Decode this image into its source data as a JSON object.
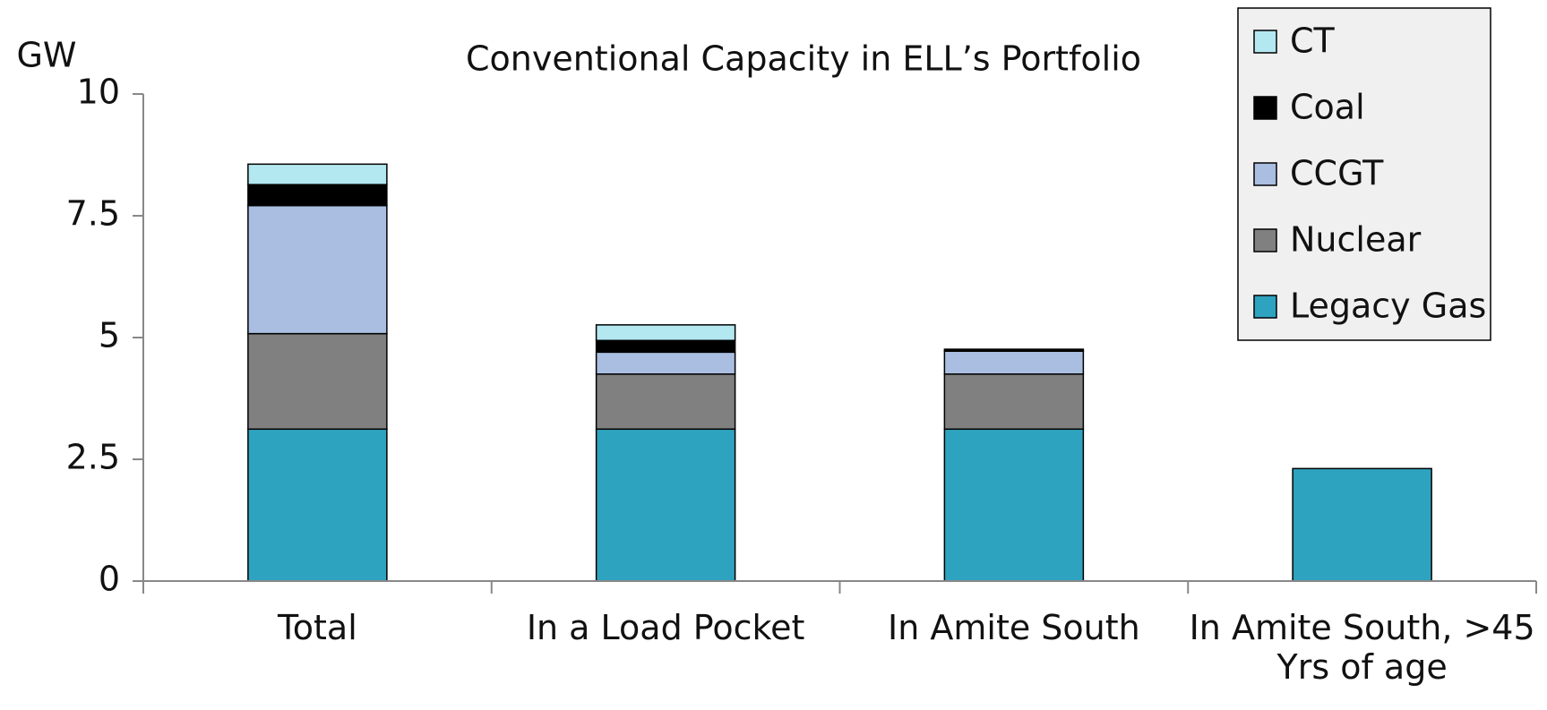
{
  "chart_data": {
    "type": "stacked_bar",
    "title": "Conventional Capacity in ELL’s Portfolio",
    "ylabel": "GW",
    "categories": [
      "Total",
      "In a Load Pocket",
      "In Amite South",
      "In Amite South, >45 Yrs of age"
    ],
    "series": [
      {
        "name": "Legacy Gas",
        "color": "#2ea3bf",
        "values": [
          3.12,
          3.12,
          3.12,
          2.31
        ]
      },
      {
        "name": "Nuclear",
        "color": "#808080",
        "values": [
          1.96,
          1.13,
          1.13,
          0
        ]
      },
      {
        "name": "CCGT",
        "color": "#a9bee0",
        "values": [
          2.63,
          0.45,
          0.47,
          0
        ]
      },
      {
        "name": "Coal",
        "color": "#000000",
        "values": [
          0.43,
          0.24,
          0.04,
          0
        ]
      },
      {
        "name": "CT",
        "color": "#b3e8f0",
        "values": [
          0.42,
          0.32,
          0,
          0
        ]
      }
    ],
    "ylim": [
      0,
      10
    ],
    "yticks": [
      0,
      2.5,
      5,
      7.5,
      10
    ],
    "legend": "upper right"
  }
}
